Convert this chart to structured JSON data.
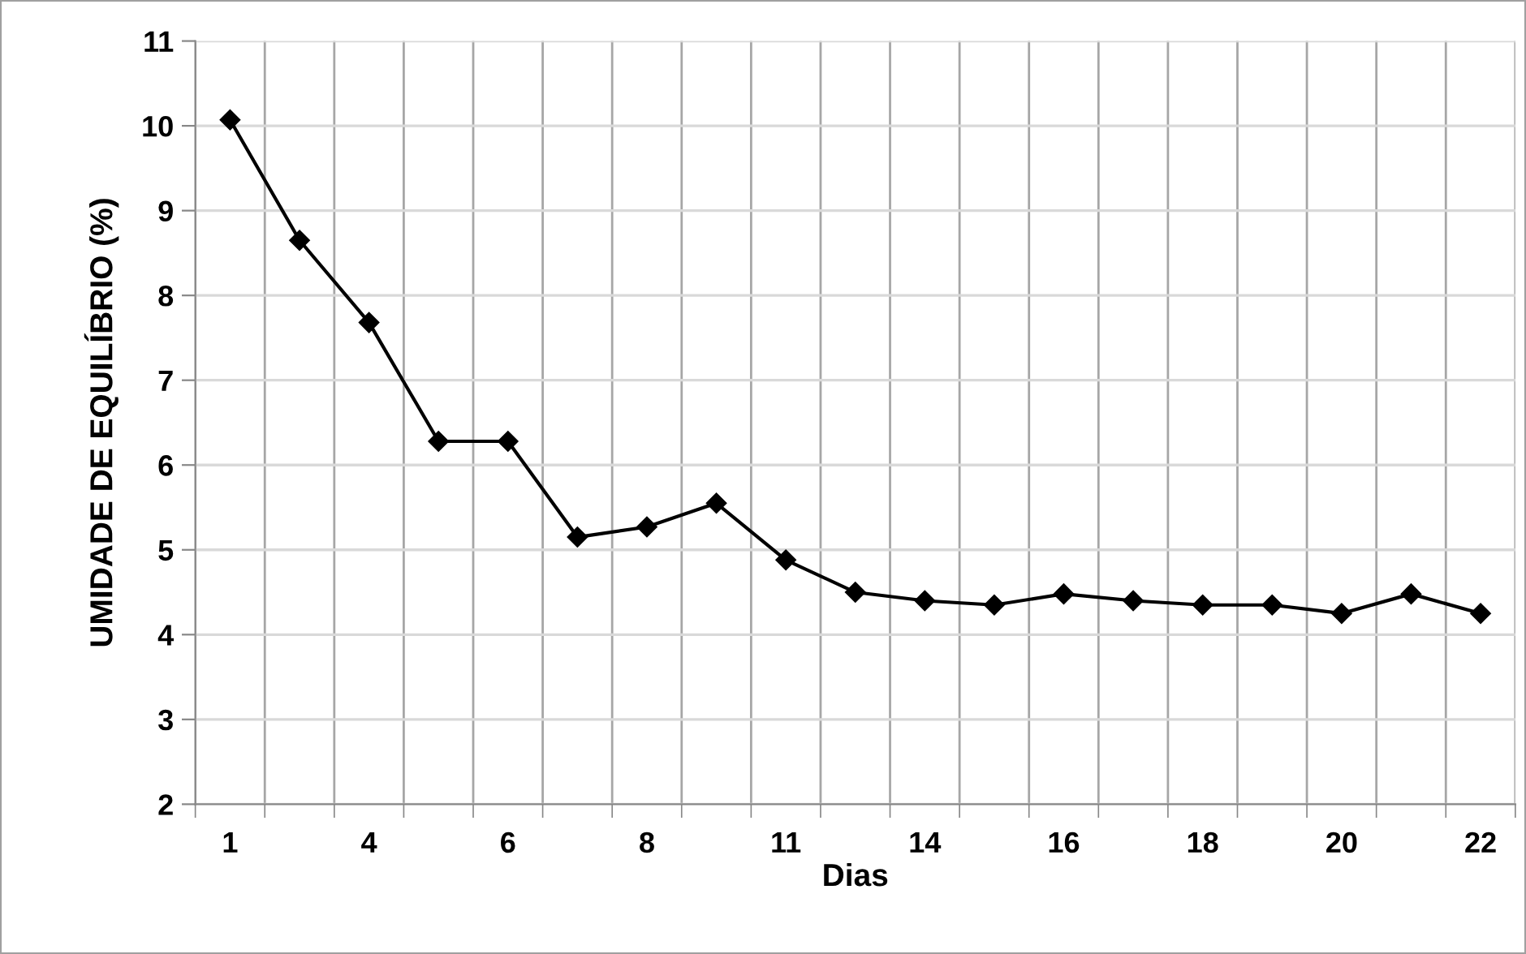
{
  "chart_data": {
    "type": "line",
    "xlabel": "Dias",
    "ylabel": "UMIDADE DE EQUILÍBRIO (%)",
    "categories": [
      "1",
      null,
      "4",
      null,
      "6",
      null,
      "8",
      null,
      "11",
      null,
      "14",
      null,
      "16",
      null,
      "18",
      null,
      "20",
      null,
      "22"
    ],
    "series": [
      {
        "color": "#000000",
        "values": [
          10.07,
          8.65,
          7.68,
          6.28,
          6.28,
          5.15,
          5.27,
          5.55,
          4.88,
          4.5,
          4.4,
          4.35,
          4.48,
          4.4,
          4.35,
          4.35,
          4.25,
          4.48,
          4.25
        ]
      }
    ],
    "ylim": [
      2,
      11
    ],
    "yticks": [
      2,
      3,
      4,
      5,
      6,
      7,
      8,
      9,
      10,
      11
    ],
    "grid": true,
    "marker": "diamond",
    "line_style": "solid"
  }
}
